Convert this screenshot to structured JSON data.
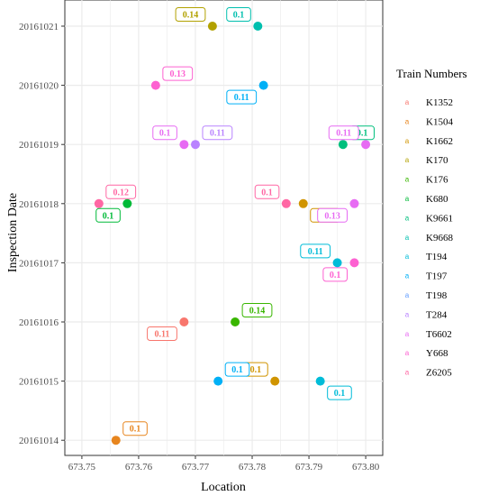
{
  "chart_data": {
    "type": "scatter",
    "xlabel": "Location",
    "ylabel": "Inspection Date",
    "xlim": [
      673.747,
      673.803
    ],
    "x_ticks": [
      "673.75",
      "673.76",
      "673.77",
      "673.78",
      "673.79",
      "673.80"
    ],
    "x_tick_values": [
      673.75,
      673.76,
      673.77,
      673.78,
      673.79,
      673.8
    ],
    "categories": [
      "20161014",
      "20161015",
      "20161016",
      "20161017",
      "20161018",
      "20161019",
      "20161020",
      "20161021"
    ],
    "grid": true,
    "legend": {
      "title": "Train Numbers",
      "placement": "right",
      "key_glyph": "a"
    },
    "series": [
      {
        "name": "K1352",
        "color": "#F8766D",
        "points": [
          {
            "x": 673.768,
            "y": "20161016",
            "label": "0.11"
          }
        ]
      },
      {
        "name": "K1504",
        "color": "#E7851E",
        "points": [
          {
            "x": 673.756,
            "y": "20161014",
            "label": "0.1"
          }
        ]
      },
      {
        "name": "K1662",
        "color": "#D09400",
        "points": [
          {
            "x": 673.784,
            "y": "20161015",
            "label": "0.1"
          },
          {
            "x": 673.789,
            "y": "20161018",
            "label": "0.13"
          }
        ]
      },
      {
        "name": "K170",
        "color": "#B2A100",
        "points": [
          {
            "x": 673.773,
            "y": "20161021",
            "label": "0.14"
          }
        ]
      },
      {
        "name": "K176",
        "color": "#39B600",
        "points": [
          {
            "x": 673.777,
            "y": "20161016",
            "label": "0.14"
          }
        ]
      },
      {
        "name": "K680",
        "color": "#00BA38",
        "points": [
          {
            "x": 673.758,
            "y": "20161018",
            "label": "0.1"
          }
        ]
      },
      {
        "name": "K9661",
        "color": "#00BF7D",
        "points": [
          {
            "x": 673.796,
            "y": "20161019",
            "label": "0.1"
          }
        ]
      },
      {
        "name": "K9668",
        "color": "#00BFAE",
        "points": [
          {
            "x": 673.781,
            "y": "20161021",
            "label": "0.1"
          }
        ]
      },
      {
        "name": "T194",
        "color": "#00BCD8",
        "points": [
          {
            "x": 673.792,
            "y": "20161015",
            "label": "0.1"
          },
          {
            "x": 673.795,
            "y": "20161017",
            "label": "0.11"
          }
        ]
      },
      {
        "name": "T197",
        "color": "#00B0F6",
        "points": [
          {
            "x": 673.774,
            "y": "20161015",
            "label": "0.1"
          },
          {
            "x": 673.782,
            "y": "20161020",
            "label": "0.11"
          }
        ]
      },
      {
        "name": "T198",
        "color": "#619CFF",
        "points": []
      },
      {
        "name": "T284",
        "color": "#B983FF",
        "points": [
          {
            "x": 673.77,
            "y": "20161019",
            "label": "0.11"
          }
        ]
      },
      {
        "name": "T6602",
        "color": "#E76BF3",
        "points": [
          {
            "x": 673.768,
            "y": "20161019",
            "label": "0.1"
          },
          {
            "x": 673.798,
            "y": "20161018",
            "label": "0.13"
          },
          {
            "x": 673.8,
            "y": "20161019",
            "label": "0.11"
          }
        ]
      },
      {
        "name": "Y668",
        "color": "#FD61D1",
        "points": [
          {
            "x": 673.763,
            "y": "20161020",
            "label": "0.13"
          },
          {
            "x": 673.798,
            "y": "20161017",
            "label": "0.1"
          }
        ]
      },
      {
        "name": "Z6205",
        "color": "#FF67A4",
        "points": [
          {
            "x": 673.753,
            "y": "20161018",
            "label": "0.12"
          },
          {
            "x": 673.786,
            "y": "20161018",
            "label": "0.1"
          }
        ]
      }
    ]
  }
}
